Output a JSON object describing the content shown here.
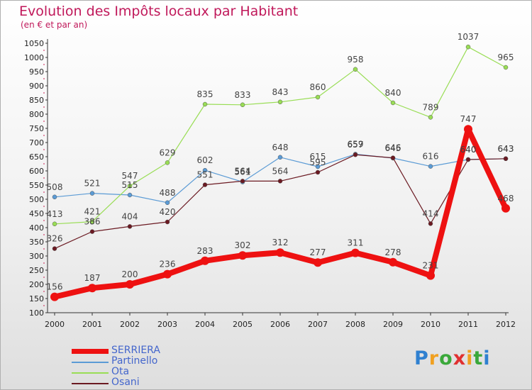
{
  "header": {
    "title": "Evolution des Impôts locaux par Habitant",
    "subtitle": "(en € et par an)"
  },
  "logo": {
    "text": "Proxiti",
    "letter_colors": [
      "#2f80d0",
      "#f0a020",
      "#3aa83a",
      "#e03030",
      "#f0a020",
      "#3aa83a",
      "#2f80d0"
    ]
  },
  "chart_data": {
    "type": "line",
    "title": "Evolution des Impôts locaux par Habitant",
    "subtitle": "(en € et par an)",
    "xlabel": "",
    "ylabel": "",
    "ylim": [
      100,
      1050
    ],
    "y_ticks": [
      100,
      150,
      200,
      250,
      300,
      350,
      400,
      450,
      500,
      550,
      600,
      650,
      700,
      750,
      800,
      850,
      900,
      950,
      1000,
      1050
    ],
    "grid": false,
    "legend_position": "bottom-left",
    "categories": [
      "2000",
      "2001",
      "2002",
      "2003",
      "2004",
      "2005",
      "2006",
      "2007",
      "2008",
      "2009",
      "2010",
      "2011",
      "2012"
    ],
    "series": [
      {
        "name": "SERRIERA",
        "color": "#ee1111",
        "values": [
          156,
          187,
          200,
          236,
          283,
          302,
          312,
          277,
          311,
          278,
          231,
          747,
          468
        ]
      },
      {
        "name": "Partinello",
        "color": "#5b9bd5",
        "values": [
          508,
          521,
          515,
          488,
          602,
          561,
          648,
          615,
          659,
          645,
          616,
          640,
          643
        ]
      },
      {
        "name": "Ota",
        "color": "#99dd55",
        "values": [
          413,
          421,
          547,
          629,
          835,
          833,
          843,
          860,
          958,
          840,
          789,
          1037,
          965
        ]
      },
      {
        "name": "Osani",
        "color": "#6b1a22",
        "values": [
          326,
          386,
          404,
          420,
          551,
          564,
          564,
          595,
          657,
          646,
          414,
          640,
          643
        ]
      }
    ]
  }
}
